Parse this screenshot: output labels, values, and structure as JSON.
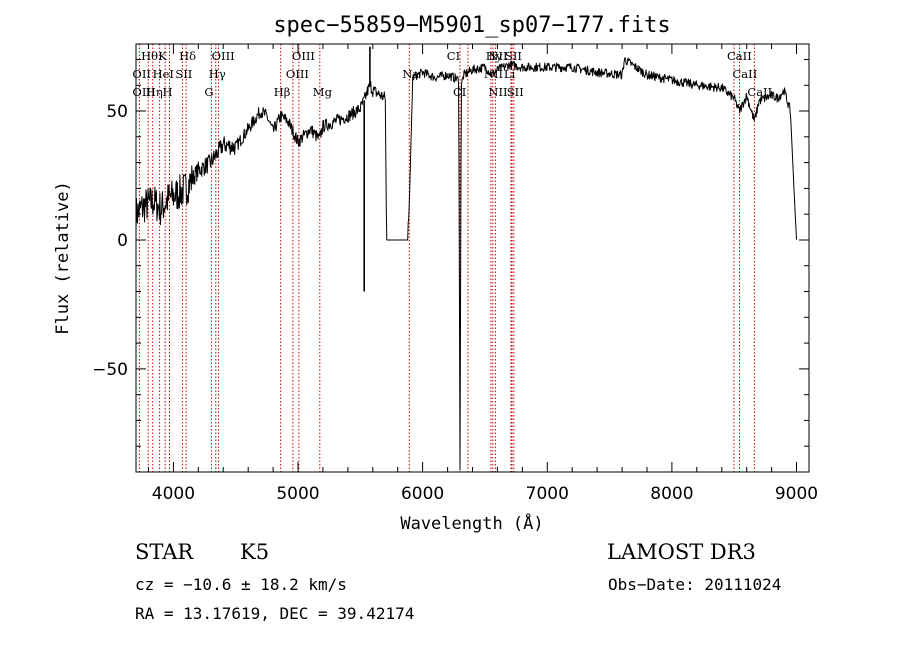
{
  "chart_data": {
    "type": "line",
    "title": "spec−55859−M5901_sp07−177.fits",
    "xlabel": "Wavelength (Å)",
    "ylabel": "Flux (relative)",
    "xlim": [
      3700,
      9100
    ],
    "ylim": [
      -90,
      76
    ],
    "xticks": [
      4000,
      5000,
      6000,
      7000,
      8000,
      9000
    ],
    "yticks": [
      -50,
      0,
      50
    ],
    "spectrum_anchors": {
      "x": [
        3700,
        3760,
        3840,
        3900,
        3960,
        4040,
        4100,
        4200,
        4300,
        4400,
        4500,
        4600,
        4700,
        4750,
        4800,
        4860,
        4920,
        4980,
        5000,
        5100,
        5170,
        5200,
        5300,
        5400,
        5500,
        5530,
        5560,
        5580,
        5600,
        5700,
        5710,
        5730,
        5800,
        5880,
        5900,
        5920,
        6000,
        6100,
        6200,
        6250,
        6290,
        6300,
        6310,
        6330,
        6400,
        6500,
        6560,
        6600,
        6700,
        6800,
        7000,
        7200,
        7400,
        7600,
        7620,
        7800,
        8000,
        8200,
        8400,
        8498,
        8542,
        8600,
        8662,
        8700,
        8800,
        8850,
        8900,
        8950,
        8980,
        9000
      ],
      "y": [
        10,
        13,
        15,
        12,
        16,
        18,
        20,
        27,
        30,
        37,
        36,
        43,
        50,
        48,
        42,
        48,
        46,
        40,
        38,
        43,
        39,
        44,
        46,
        48,
        51,
        54,
        58,
        60,
        58,
        55,
        0,
        0,
        0,
        0,
        25,
        63,
        65,
        63,
        64,
        63,
        62,
        -90,
        60,
        64,
        66,
        67,
        64,
        66,
        68,
        67,
        67,
        67,
        65,
        64,
        70,
        64,
        62,
        60,
        59,
        55,
        50,
        56,
        46,
        54,
        56,
        55,
        58,
        50,
        20,
        0
      ]
    },
    "features": [
      {
        "x": 5531,
        "y": -20
      },
      {
        "x": 5577,
        "y": 75
      },
      {
        "x": 6300,
        "y": -90
      }
    ],
    "line_labels": [
      {
        "text": "Hθ",
        "x": 3797,
        "row": 0
      },
      {
        "text": "K",
        "x": 3934,
        "row": 0
      },
      {
        "text": "Hδ",
        "x": 4102,
        "row": 0
      },
      {
        "text": "OIII",
        "x": 4363,
        "row": 0
      },
      {
        "text": "OIII",
        "x": 5007,
        "row": 0
      },
      {
        "text": "CI",
        "x": 6250,
        "row": 0
      },
      {
        "text": "Hy",
        "x": 6563,
        "row": 0
      },
      {
        "text": "NII",
        "x": 6584,
        "row": 0
      },
      {
        "text": "SII",
        "x": 6717,
        "row": 0
      },
      {
        "text": "CaII",
        "x": 8498,
        "row": 0
      },
      {
        "text": "OII",
        "x": 3727,
        "row": 1
      },
      {
        "text": "HeI",
        "x": 3889,
        "row": 1
      },
      {
        "text": "SII",
        "x": 4072,
        "row": 1
      },
      {
        "text": "Hγ",
        "x": 4340,
        "row": 1
      },
      {
        "text": "OIII",
        "x": 4959,
        "row": 1
      },
      {
        "text": "Na",
        "x": 5893,
        "row": 1
      },
      {
        "text": "NII",
        "x": 6548,
        "row": 1
      },
      {
        "text": "Li",
        "x": 6708,
        "row": 1
      },
      {
        "text": "CaII",
        "x": 8542,
        "row": 1
      },
      {
        "text": "OIII",
        "x": 3727,
        "row": 2
      },
      {
        "text": "Hη",
        "x": 3835,
        "row": 2
      },
      {
        "text": "H",
        "x": 3969,
        "row": 2
      },
      {
        "text": "G",
        "x": 4305,
        "row": 2
      },
      {
        "text": "Hβ",
        "x": 4861,
        "row": 2
      },
      {
        "text": "Mg",
        "x": 5175,
        "row": 2
      },
      {
        "text": "CI",
        "x": 6300,
        "row": 2
      },
      {
        "text": "NII",
        "x": 6584,
        "row": 2
      },
      {
        "text": "SII",
        "x": 6731,
        "row": 2
      },
      {
        "text": "CaII",
        "x": 8662,
        "row": 2
      }
    ],
    "marker_lines": [
      3727,
      3798,
      3835,
      3889,
      3934,
      3969,
      4072,
      4102,
      4305,
      4340,
      4363,
      4861,
      4959,
      5007,
      5175,
      5893,
      6300,
      6363,
      6548,
      6563,
      6584,
      6708,
      6717,
      6731,
      8498,
      8542,
      8662
    ],
    "marker_color": "#cc0000",
    "line_color": "#000000"
  },
  "footer": {
    "object_class": "STAR",
    "subclass": "K5",
    "redshift": "cz = −10.6 ± 18.2 km/s",
    "coords": "RA =  13.17619, DEC =  39.42174",
    "survey": "LAMOST DR3",
    "obs_date": "Obs−Date: 20111024"
  }
}
